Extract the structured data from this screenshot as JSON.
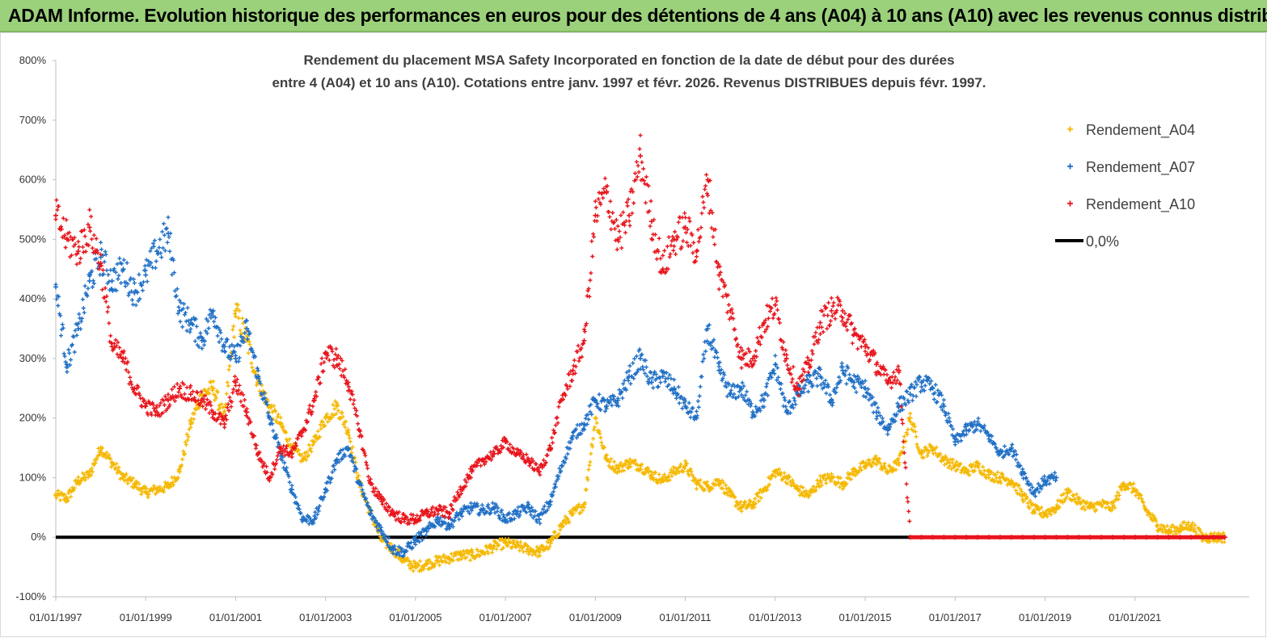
{
  "header": {
    "title": "ADAM Informe. Evolution historique des performances en euros pour des détentions de 4 ans (A04) à 10 ans (A10) avec les revenus connus distribués"
  },
  "chart_data": {
    "type": "scatter",
    "title_line1": "Rendement du placement MSA Safety Incorporated en fonction de la date de début pour des durées",
    "title_line2": "entre 4 (A04) et 10 ans (A10).  Cotations entre janv. 1997 et févr. 2026. Revenus DISTRIBUES depuis févr. 1997.",
    "xlabel": "",
    "ylabel": "",
    "xlim": [
      1997.0,
      2023.0
    ],
    "ylim": [
      -100,
      800
    ],
    "y_ticks": [
      "-100%",
      "0%",
      "100%",
      "200%",
      "300%",
      "400%",
      "500%",
      "600%",
      "700%",
      "800%"
    ],
    "x_ticks": [
      {
        "label": "01/01/1997",
        "x": 1997
      },
      {
        "label": "01/01/1999",
        "x": 1999
      },
      {
        "label": "01/01/2001",
        "x": 2001
      },
      {
        "label": "01/01/2003",
        "x": 2003
      },
      {
        "label": "01/01/2005",
        "x": 2005
      },
      {
        "label": "01/01/2007",
        "x": 2007
      },
      {
        "label": "01/01/2009",
        "x": 2009
      },
      {
        "label": "01/01/2011",
        "x": 2011
      },
      {
        "label": "01/01/2013",
        "x": 2013
      },
      {
        "label": "01/01/2015",
        "x": 2015
      },
      {
        "label": "01/01/2017",
        "x": 2017
      },
      {
        "label": "01/01/2019",
        "x": 2019
      },
      {
        "label": "01/01/2021",
        "x": 2021
      }
    ],
    "legend_position": "top-right",
    "series": [
      {
        "name": "Rendement_A04",
        "color": "#f5b800",
        "marker": "+",
        "x": [
          1997.0,
          1997.25,
          1997.5,
          1997.75,
          1998.0,
          1998.25,
          1998.5,
          1998.75,
          1999.0,
          1999.25,
          1999.5,
          1999.75,
          2000.0,
          2000.25,
          2000.5,
          2000.75,
          2001.0,
          2001.25,
          2001.5,
          2001.75,
          2002.0,
          2002.25,
          2002.5,
          2002.75,
          2003.0,
          2003.25,
          2003.5,
          2003.75,
          2004.0,
          2004.25,
          2004.5,
          2004.75,
          2005.0,
          2005.25,
          2005.5,
          2005.75,
          2006.0,
          2006.25,
          2006.5,
          2006.75,
          2007.0,
          2007.25,
          2007.5,
          2007.75,
          2008.0,
          2008.25,
          2008.5,
          2008.75,
          2009.0,
          2009.25,
          2009.5,
          2009.75,
          2010.0,
          2010.25,
          2010.5,
          2010.75,
          2011.0,
          2011.25,
          2011.5,
          2011.75,
          2012.0,
          2012.25,
          2012.5,
          2012.75,
          2013.0,
          2013.25,
          2013.5,
          2013.75,
          2014.0,
          2014.25,
          2014.5,
          2014.75,
          2015.0,
          2015.25,
          2015.5,
          2015.75,
          2016.0,
          2016.25,
          2016.5,
          2016.75,
          2017.0,
          2017.25,
          2017.5,
          2017.75,
          2018.0,
          2018.25,
          2018.5,
          2018.75,
          2019.0,
          2019.25,
          2019.5,
          2019.75,
          2020.0,
          2020.25,
          2020.5,
          2020.75,
          2021.0,
          2021.25,
          2021.5,
          2021.75,
          2022.0,
          2022.25,
          2022.5,
          2022.75,
          2023.0
        ],
        "y": [
          70,
          65,
          95,
          105,
          150,
          125,
          100,
          90,
          75,
          80,
          85,
          110,
          190,
          240,
          250,
          200,
          380,
          330,
          260,
          220,
          190,
          150,
          130,
          160,
          200,
          220,
          180,
          90,
          40,
          -5,
          -20,
          -40,
          -50,
          -45,
          -40,
          -35,
          -30,
          -30,
          -25,
          -15,
          -10,
          -15,
          -20,
          -25,
          -10,
          20,
          40,
          55,
          200,
          130,
          115,
          125,
          120,
          105,
          95,
          110,
          120,
          90,
          85,
          95,
          70,
          50,
          55,
          80,
          110,
          100,
          80,
          70,
          95,
          100,
          90,
          110,
          120,
          130,
          110,
          125,
          200,
          140,
          150,
          130,
          120,
          110,
          120,
          105,
          100,
          95,
          70,
          45,
          40,
          50,
          75,
          60,
          50,
          55,
          50,
          90,
          80,
          45,
          20,
          10,
          15,
          20,
          0,
          0,
          0
        ]
      },
      {
        "name": "Rendement_A07",
        "color": "#1f6fc5",
        "marker": "+",
        "x": [
          1997.0,
          1997.25,
          1997.5,
          1997.75,
          1998.0,
          1998.25,
          1998.5,
          1998.75,
          1999.0,
          1999.25,
          1999.5,
          1999.75,
          2000.0,
          2000.25,
          2000.5,
          2000.75,
          2001.0,
          2001.25,
          2001.5,
          2001.75,
          2002.0,
          2002.25,
          2002.5,
          2002.75,
          2003.0,
          2003.25,
          2003.5,
          2003.75,
          2004.0,
          2004.25,
          2004.5,
          2004.75,
          2005.0,
          2005.25,
          2005.5,
          2005.75,
          2006.0,
          2006.25,
          2006.5,
          2006.75,
          2007.0,
          2007.25,
          2007.5,
          2007.75,
          2008.0,
          2008.25,
          2008.5,
          2008.75,
          2009.0,
          2009.25,
          2009.5,
          2009.75,
          2010.0,
          2010.25,
          2010.5,
          2010.75,
          2011.0,
          2011.25,
          2011.5,
          2011.75,
          2012.0,
          2012.25,
          2012.5,
          2012.75,
          2013.0,
          2013.25,
          2013.5,
          2013.75,
          2014.0,
          2014.25,
          2014.5,
          2014.75,
          2015.0,
          2015.25,
          2015.5,
          2015.75,
          2016.0,
          2016.25,
          2016.5,
          2016.75,
          2017.0,
          2017.25,
          2017.5,
          2017.75,
          2018.0,
          2018.25,
          2018.5,
          2018.75,
          2019.0,
          2019.25
        ],
        "y": [
          420,
          290,
          350,
          430,
          470,
          430,
          450,
          410,
          440,
          480,
          510,
          380,
          360,
          330,
          380,
          320,
          300,
          350,
          270,
          200,
          140,
          80,
          30,
          30,
          80,
          130,
          150,
          90,
          40,
          10,
          -20,
          -25,
          -5,
          10,
          30,
          20,
          40,
          50,
          45,
          50,
          30,
          40,
          50,
          30,
          60,
          120,
          170,
          190,
          230,
          220,
          230,
          270,
          300,
          260,
          270,
          250,
          220,
          200,
          350,
          280,
          240,
          250,
          210,
          230,
          290,
          210,
          240,
          260,
          270,
          230,
          280,
          260,
          250,
          210,
          180,
          220,
          240,
          260,
          250,
          220,
          160,
          180,
          190,
          170,
          140,
          150,
          110,
          75,
          95,
          100
        ]
      },
      {
        "name": "Rendement_A10",
        "color": "#e8141b",
        "marker": "+",
        "x": [
          1997.0,
          1997.25,
          1997.5,
          1997.75,
          1998.0,
          1998.25,
          1998.5,
          1998.75,
          1999.0,
          1999.25,
          1999.5,
          1999.75,
          2000.0,
          2000.25,
          2000.5,
          2000.75,
          2001.0,
          2001.25,
          2001.5,
          2001.75,
          2002.0,
          2002.25,
          2002.5,
          2002.75,
          2003.0,
          2003.25,
          2003.5,
          2003.75,
          2004.0,
          2004.25,
          2004.5,
          2004.75,
          2005.0,
          2005.25,
          2005.5,
          2005.75,
          2006.0,
          2006.25,
          2006.5,
          2006.75,
          2007.0,
          2007.25,
          2007.5,
          2007.75,
          2008.0,
          2008.25,
          2008.5,
          2008.75,
          2009.0,
          2009.25,
          2009.5,
          2009.75,
          2010.0,
          2010.25,
          2010.5,
          2010.75,
          2011.0,
          2011.25,
          2011.5,
          2011.75,
          2012.0,
          2012.25,
          2012.5,
          2012.75,
          2013.0,
          2013.25,
          2013.5,
          2013.75,
          2014.0,
          2014.25,
          2014.5,
          2014.75,
          2015.0,
          2015.25,
          2015.5,
          2015.75,
          2016.0,
          2016.25,
          2016.5,
          2016.75,
          2017.0,
          2017.25,
          2017.5,
          2017.75,
          2018.0,
          2018.25,
          2018.5,
          2018.75,
          2019.0,
          2019.25,
          2019.5,
          2019.75,
          2020.0,
          2020.25,
          2020.5,
          2020.75,
          2021.0,
          2021.25,
          2021.5,
          2021.75,
          2022.0,
          2022.25,
          2022.5,
          2022.75,
          2023.0
        ],
        "y": [
          540,
          500,
          480,
          520,
          460,
          320,
          300,
          250,
          220,
          210,
          230,
          250,
          240,
          230,
          210,
          190,
          260,
          210,
          140,
          100,
          150,
          140,
          180,
          230,
          310,
          300,
          260,
          180,
          90,
          60,
          40,
          30,
          30,
          40,
          45,
          40,
          80,
          110,
          130,
          140,
          160,
          140,
          130,
          110,
          150,
          230,
          280,
          330,
          540,
          580,
          500,
          540,
          640,
          530,
          450,
          500,
          520,
          480,
          600,
          440,
          380,
          300,
          300,
          360,
          390,
          300,
          250,
          290,
          360,
          380,
          380,
          340,
          320,
          290,
          260,
          280,
          0,
          0,
          0,
          0,
          0,
          0,
          0,
          0,
          0,
          0,
          0,
          0,
          0,
          0,
          0,
          0,
          0,
          0,
          0,
          0,
          0,
          0,
          0,
          0,
          0,
          0,
          0,
          0,
          0
        ]
      },
      {
        "name": "0,0%",
        "color": "#000000",
        "marker": "line",
        "x": [
          1997.0,
          2016.0
        ],
        "y": [
          0,
          0
        ]
      }
    ]
  }
}
